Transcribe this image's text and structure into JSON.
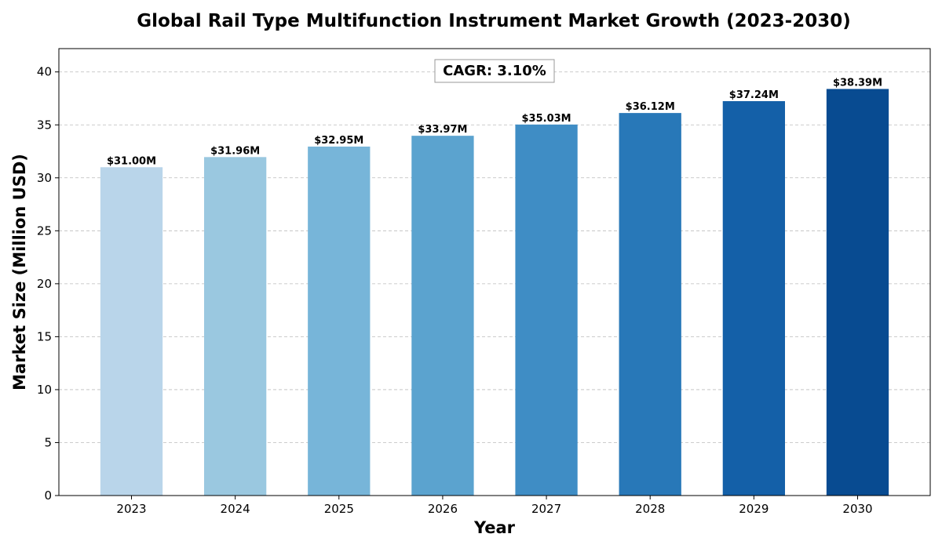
{
  "chart_data": {
    "type": "bar",
    "title": "Global Rail Type Multifunction Instrument Market Growth (2023-2030)",
    "xlabel": "Year",
    "ylabel": "Market Size (Million USD)",
    "categories": [
      "2023",
      "2024",
      "2025",
      "2026",
      "2027",
      "2028",
      "2029",
      "2030"
    ],
    "values": [
      31.0,
      31.96,
      32.95,
      33.97,
      35.03,
      36.12,
      37.24,
      38.39
    ],
    "data_labels": [
      "$31.00M",
      "$31.96M",
      "$32.95M",
      "$33.97M",
      "$35.03M",
      "$36.12M",
      "$37.24M",
      "$38.39M"
    ],
    "ylim": [
      0,
      42.2
    ],
    "yticks": [
      0,
      5,
      10,
      15,
      20,
      25,
      30,
      35,
      40
    ],
    "grid": true,
    "grid_axis": "y",
    "annotation": "CAGR: 3.10%",
    "bar_colors": [
      "#b9d5ea",
      "#9ac8e0",
      "#77b5d9",
      "#5ba3cf",
      "#3f8dc5",
      "#2878b8",
      "#1460a8",
      "#084b91"
    ]
  }
}
